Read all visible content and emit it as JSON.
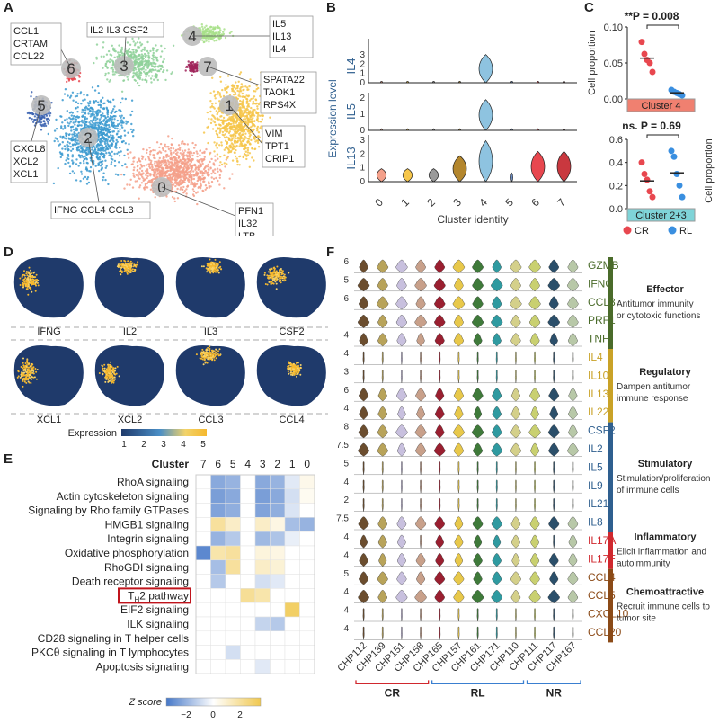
{
  "panel_letters": [
    "A",
    "B",
    "C",
    "D",
    "E",
    "F"
  ],
  "panel_a": {
    "clusters": [
      {
        "id": "0",
        "color": "#f4a08a",
        "genes": [
          "PFN1",
          "IL32",
          "LTB"
        ]
      },
      {
        "id": "1",
        "color": "#f6c64a",
        "genes": [
          "VIM",
          "TPT1",
          "CRIP1"
        ]
      },
      {
        "id": "2",
        "color": "#3b9ad0",
        "genes": [
          "IFNG CCL4 CCL3"
        ]
      },
      {
        "id": "3",
        "color": "#8fd19a",
        "genes": [
          "IL2 IL3 CSF2"
        ]
      },
      {
        "id": "4",
        "color": "#a8e08a",
        "genes": [
          "IL5",
          "IL13",
          "IL4"
        ]
      },
      {
        "id": "5",
        "color": "#3a62b0",
        "genes": [
          "CXCL8",
          "XCL2",
          "XCL1"
        ]
      },
      {
        "id": "6",
        "color": "#e8474f",
        "genes": [
          "CCL1",
          "CRTAM",
          "CCL22"
        ]
      },
      {
        "id": "7",
        "color": "#a0245a",
        "genes": [
          "SPATA22",
          "TAOK1",
          "RPS4X"
        ]
      }
    ]
  },
  "panel_b": {
    "ylabel": "Expression level",
    "xlabel": "Cluster identity",
    "genes": [
      "IL4",
      "IL5",
      "IL13"
    ],
    "clusters": [
      "0",
      "1",
      "2",
      "3",
      "4",
      "5",
      "6",
      "7"
    ],
    "colors": [
      "#f4a08a",
      "#f6c64a",
      "#9a9a9a",
      "#b3862d",
      "#8ec3e0",
      "#6a8bc2",
      "#e8474f",
      "#c9383f"
    ],
    "yticks": {
      "IL4": [
        "0",
        "1",
        "2",
        "3"
      ],
      "IL5": [
        "0",
        "1",
        "2"
      ],
      "IL13": [
        "0",
        "1",
        "2",
        "3"
      ]
    }
  },
  "panel_c": {
    "ylabel": "Cell proportion",
    "top": {
      "stat": "**P = 0.008",
      "box": "Cluster 4",
      "box_color": "#f08070",
      "yticks": [
        "0.00",
        "0.05",
        "0.10"
      ],
      "ylim": [
        0,
        0.12
      ],
      "CR": [
        0.095,
        0.075,
        0.065,
        0.06,
        0.045
      ],
      "RL": [
        0.015,
        0.012,
        0.01,
        0.008,
        0.006
      ]
    },
    "bottom": {
      "stat": "ns. P = 0.69",
      "box": "Cluster 2+3",
      "box_color": "#7fd4d8",
      "yticks": [
        "0.0",
        "0.2",
        "0.4",
        "0.6"
      ],
      "ylim": [
        0,
        0.6
      ],
      "CR": [
        0.4,
        0.3,
        0.25,
        0.15,
        0.1
      ],
      "RL": [
        0.5,
        0.45,
        0.3,
        0.2,
        0.1
      ]
    },
    "legend": [
      {
        "label": "CR",
        "color": "#e8474f"
      },
      {
        "label": "RL",
        "color": "#3a8fe0"
      }
    ]
  },
  "panel_d": {
    "genes_top": [
      "IFNG",
      "IL2",
      "IL3",
      "CSF2"
    ],
    "genes_bottom": [
      "XCL1",
      "XCL2",
      "CCL3",
      "CCL4"
    ],
    "colorbar_label": "Expression",
    "colorbar_ticks": [
      "1",
      "2",
      "3",
      "4",
      "5"
    ]
  },
  "panel_e": {
    "header": "Cluster",
    "clusters": [
      "7",
      "6",
      "5",
      "4",
      "3",
      "2",
      "1",
      "0"
    ],
    "pathways": [
      "RhoA signaling",
      "Actin cytoskeleton signaling",
      "Signaling by Rho family GTPases",
      "HMGB1 signaling",
      "Integrin signaling",
      "Oxidative phosphorylation",
      "RhoGDI signaling",
      "Death receptor signaling",
      "TH2 pathway",
      "EIF2 signaling",
      "ILK signaling",
      "CD28 signaling in T helper cells",
      "PKCθ signaling in T lymphocytes",
      "Apoptosis signaling"
    ],
    "th2_main": "T",
    "th2_sub": "H",
    "th2_rest": "2 pathway",
    "zscores": [
      [
        0,
        -1.6,
        -1.4,
        0,
        -1.6,
        -1.4,
        -0.4,
        0.3
      ],
      [
        0,
        -1.8,
        -1.6,
        0,
        -1.8,
        -1.6,
        -0.6,
        0.2
      ],
      [
        0,
        -1.7,
        -1.5,
        0,
        -1.7,
        -1.5,
        -0.5,
        0
      ],
      [
        0,
        1.4,
        0.8,
        0,
        0.8,
        0.4,
        -1.2,
        -1.4
      ],
      [
        0,
        -1.4,
        -1.0,
        0,
        -1.3,
        -1.1,
        -0.3,
        0
      ],
      [
        -2.2,
        1.2,
        1.4,
        0,
        0.5,
        0.4,
        0,
        0
      ],
      [
        0,
        -1.2,
        1.4,
        0,
        0.8,
        0.6,
        0,
        0
      ],
      [
        0,
        -1.0,
        0,
        0,
        -0.6,
        -0.4,
        0,
        0
      ],
      [
        0,
        0,
        0,
        1.5,
        1.2,
        0,
        0,
        0
      ],
      [
        0,
        0,
        0,
        0,
        0,
        0,
        2.2,
        0
      ],
      [
        0,
        0,
        0,
        0,
        -0.8,
        -1.0,
        0,
        0
      ],
      [
        0,
        0,
        0,
        0,
        0,
        0,
        0,
        0
      ],
      [
        0,
        0,
        -0.6,
        0,
        0,
        0,
        0,
        0
      ],
      [
        0,
        0,
        0,
        0,
        -0.4,
        0,
        0,
        0
      ]
    ],
    "colorbar_label": "Z score",
    "colorbar_ticks": [
      "−2",
      "0",
      "2"
    ]
  },
  "panel_f": {
    "genes": [
      {
        "name": "GZMB",
        "tick": "6",
        "color": "#4a6b2a"
      },
      {
        "name": "IFNG",
        "tick": "5",
        "color": "#4a6b2a"
      },
      {
        "name": "CCL3",
        "tick": "6",
        "color": "#4a6b2a"
      },
      {
        "name": "PRF1",
        "tick": "",
        "color": "#4a6b2a"
      },
      {
        "name": "TNF",
        "tick": "4",
        "color": "#4a6b2a"
      },
      {
        "name": "IL4",
        "tick": "4",
        "color": "#c9a227"
      },
      {
        "name": "IL10",
        "tick": "3",
        "color": "#c9a227"
      },
      {
        "name": "IL13",
        "tick": "6",
        "color": "#c9a227"
      },
      {
        "name": "IL22",
        "tick": "4",
        "color": "#c9a227"
      },
      {
        "name": "CSF2",
        "tick": "8",
        "color": "#2f5f8f"
      },
      {
        "name": "IL2",
        "tick": "7.5",
        "color": "#2f5f8f"
      },
      {
        "name": "IL5",
        "tick": "5",
        "color": "#2f5f8f"
      },
      {
        "name": "IL9",
        "tick": "4",
        "color": "#2f5f8f"
      },
      {
        "name": "IL21",
        "tick": "2",
        "color": "#2f5f8f"
      },
      {
        "name": "IL8",
        "tick": "7.5",
        "color": "#2f5f8f"
      },
      {
        "name": "IL17A",
        "tick": "4",
        "color": "#d0282e"
      },
      {
        "name": "IL17F",
        "tick": "4",
        "color": "#d0282e"
      },
      {
        "name": "CCL4",
        "tick": "5",
        "color": "#8b4a17"
      },
      {
        "name": "CCL5",
        "tick": "4",
        "color": "#8b4a17"
      },
      {
        "name": "CXCL10",
        "tick": "4",
        "color": "#8b4a17"
      },
      {
        "name": "CCL20",
        "tick": "4",
        "color": "#8b4a17"
      }
    ],
    "samples": [
      "CHP112",
      "CHP139",
      "CHP151",
      "CHP158",
      "CHP165",
      "CHP157",
      "CHP161",
      "CHP171",
      "CHP110",
      "CHP111",
      "CHP117",
      "CHP167"
    ],
    "sample_colors": [
      "#6b4d2e",
      "#b8a35a",
      "#c8c0de",
      "#c8a08a",
      "#9a1f30",
      "#e8c84a",
      "#3f7a3a",
      "#2f9aa0",
      "#d4d08a",
      "#c9d070",
      "#2b4f6a",
      "#b8c8a8"
    ],
    "groups": [
      {
        "label": "CR",
        "color": "#d0282e",
        "from": 0,
        "to": 3
      },
      {
        "label": "RL",
        "color": "#3a7fd0",
        "from": 4,
        "to": 8
      },
      {
        "label": "NR",
        "color": "#3a7fd0",
        "from": 9,
        "to": 11
      }
    ],
    "categories": [
      {
        "title": "Effector",
        "desc": [
          "Antitumor immunity",
          "or cytotoxic functions"
        ],
        "color": "#4a6b2a",
        "from": 0,
        "to": 4
      },
      {
        "title": "Regulatory",
        "desc": [
          "Dampen antitumor",
          "immune response"
        ],
        "color": "#c9a227",
        "from": 5,
        "to": 8
      },
      {
        "title": "Stimulatory",
        "desc": [
          "Stimulation/proliferation",
          "of immune cells"
        ],
        "color": "#2f5f8f",
        "from": 9,
        "to": 14
      },
      {
        "title": "Inflammatory",
        "desc": [
          "Elicit inflammation and",
          "autoimmunity"
        ],
        "color": "#d0282e",
        "from": 15,
        "to": 16
      },
      {
        "title": "Chemoattractive",
        "desc": [
          "Recruit immune cells to",
          "tumor site"
        ],
        "color": "#8b4a17",
        "from": 17,
        "to": 20
      }
    ]
  }
}
